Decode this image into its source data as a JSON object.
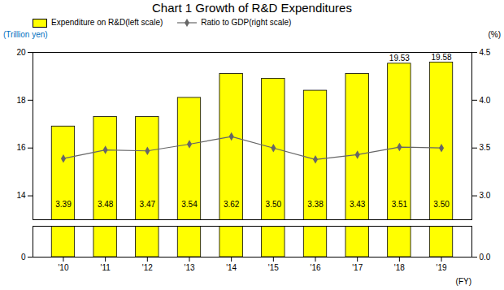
{
  "chart_data": {
    "type": "bar",
    "title": "Chart 1  Growth of R&D Expenditures",
    "categories": [
      "'10",
      "'11",
      "'12",
      "'13",
      "'14",
      "'15",
      "'16",
      "'17",
      "'18",
      "'19"
    ],
    "series": [
      {
        "name": "Expenditure on R&D(left scale)",
        "type": "bar",
        "color": "#FFFF00",
        "values": [
          16.9,
          17.3,
          17.3,
          18.1,
          19.1,
          18.9,
          18.4,
          19.1,
          19.53,
          19.58
        ],
        "data_labels": true,
        "value_labels": [
          null,
          null,
          null,
          null,
          null,
          null,
          null,
          null,
          "19.53",
          "19.58"
        ]
      },
      {
        "name": "Ratio to GDP(right scale)",
        "type": "line",
        "axis": "y2",
        "color": "#666666",
        "marker": "diamond",
        "values": [
          3.39,
          3.48,
          3.47,
          3.54,
          3.62,
          3.5,
          3.38,
          3.43,
          3.51,
          3.5
        ],
        "data_labels": true,
        "value_labels": [
          "3.39",
          "3.48",
          "3.47",
          "3.54",
          "3.62",
          "3.50",
          "3.38",
          "3.43",
          "3.51",
          "3.50"
        ]
      }
    ],
    "ylabel": "(Trillion yen)",
    "y2label": "(%)",
    "xlabel": "(FY)",
    "ylim": [
      0,
      20
    ],
    "yticks": [
      0,
      14,
      16,
      18,
      20
    ],
    "y2lim": [
      0,
      4.5
    ],
    "y2ticks": [
      {
        "value": 0,
        "label": "0.0"
      },
      {
        "value": 3,
        "label": "3.0"
      },
      3.5,
      {
        "value": 4,
        "label": "4.0"
      },
      4.5
    ],
    "grid": false,
    "legend": "upper left"
  }
}
